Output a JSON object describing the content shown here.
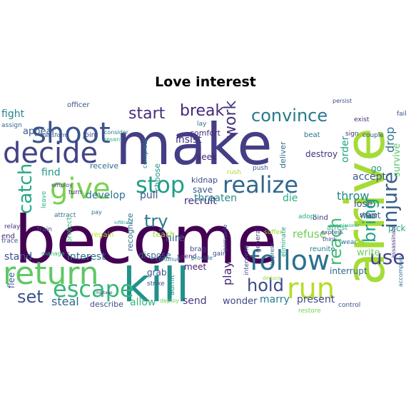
{
  "title": "Love interest",
  "words": [
    {
      "text": "become",
      "color": "#440154"
    },
    {
      "text": "make",
      "color": "#433e85"
    },
    {
      "text": "arrive",
      "color": "#a5db36"
    },
    {
      "text": "kill",
      "color": "#21918c"
    },
    {
      "text": "return",
      "color": "#5ec962"
    },
    {
      "text": "shoot",
      "color": "#3b528b"
    },
    {
      "text": "decide",
      "color": "#414487"
    },
    {
      "text": "give",
      "color": "#7ad151"
    },
    {
      "text": "follow",
      "color": "#2c728e"
    },
    {
      "text": "run",
      "color": "#b5de2b"
    },
    {
      "text": "realize",
      "color": "#31688e"
    },
    {
      "text": "escape",
      "color": "#35b779"
    },
    {
      "text": "stop",
      "color": "#1f9e89"
    },
    {
      "text": "convince",
      "color": "#2a788e"
    },
    {
      "text": "start",
      "color": "#472c7a"
    },
    {
      "text": "break",
      "color": "#482878"
    },
    {
      "text": "hold",
      "color": "#3e4a89"
    },
    {
      "text": "catch",
      "color": "#22a884"
    },
    {
      "text": "injure",
      "color": "#355f8d"
    },
    {
      "text": "bring",
      "color": "#1fa188"
    },
    {
      "text": "work",
      "color": "#46337e"
    },
    {
      "text": "use",
      "color": "#414487"
    },
    {
      "text": "reach",
      "color": "#3fbc73"
    },
    {
      "text": "set",
      "color": "#3b528b"
    },
    {
      "text": "try",
      "color": "#2a788e"
    },
    {
      "text": "develop",
      "color": "#2c728e"
    },
    {
      "text": "fight",
      "color": "#26828e"
    },
    {
      "text": "interest",
      "color": "#2d708e"
    },
    {
      "text": "steal",
      "color": "#306a8e"
    },
    {
      "text": "insist",
      "color": "#463480"
    },
    {
      "text": "hire",
      "color": "#34618d"
    },
    {
      "text": "accept",
      "color": "#39568c"
    },
    {
      "text": "throw",
      "color": "#24868e"
    },
    {
      "text": "refuse",
      "color": "#6ccd5a"
    },
    {
      "text": "marry",
      "color": "#287c8e"
    },
    {
      "text": "present",
      "color": "#3e4989"
    },
    {
      "text": "wonder",
      "color": "#3f4889"
    },
    {
      "text": "play",
      "color": "#482374"
    },
    {
      "text": "allow",
      "color": "#35b779"
    },
    {
      "text": "stand",
      "color": "#3b528b"
    },
    {
      "text": "recruit",
      "color": "#472a7a"
    },
    {
      "text": "threaten",
      "color": "#23898e"
    },
    {
      "text": "drop",
      "color": "#2d708e"
    },
    {
      "text": "survive",
      "color": "#54c568"
    },
    {
      "text": "appear",
      "color": "#375a8c"
    },
    {
      "text": "find",
      "color": "#1f978b"
    },
    {
      "text": "pull",
      "color": "#3a548c"
    },
    {
      "text": "save",
      "color": "#38588c"
    },
    {
      "text": "die",
      "color": "#29af7f"
    },
    {
      "text": "order",
      "color": "#20a486"
    },
    {
      "text": "lose",
      "color": "#3b528b"
    },
    {
      "text": "pick",
      "color": "#25ab82"
    },
    {
      "text": "send",
      "color": "#443983"
    },
    {
      "text": "write",
      "color": "#6ece58"
    },
    {
      "text": "interrupt",
      "color": "#31668e"
    },
    {
      "text": "destroy",
      "color": "#46327e"
    },
    {
      "text": "kidnap",
      "color": "#3f4788"
    },
    {
      "text": "go",
      "color": "#1f9a8a"
    },
    {
      "text": "want",
      "color": "#2c738e"
    },
    {
      "text": "receive",
      "color": "#306a8e"
    },
    {
      "text": "dispose",
      "color": "#2e6e8e"
    },
    {
      "text": "grab",
      "color": "#3b528b"
    },
    {
      "text": "meet",
      "color": "#481f70"
    },
    {
      "text": "teach",
      "color": "#a5db36"
    },
    {
      "text": "recognize",
      "color": "#2d708e"
    },
    {
      "text": "choose",
      "color": "#1f968b"
    },
    {
      "text": "deliver",
      "color": "#2e6d8e"
    },
    {
      "text": "seek",
      "color": "#482475"
    },
    {
      "text": "comfort",
      "color": "#472c7a"
    },
    {
      "text": "brag",
      "color": "#3e4a89"
    },
    {
      "text": "train",
      "color": "#3b528b"
    },
    {
      "text": "end",
      "color": "#481a6c"
    },
    {
      "text": "regain",
      "color": "#bddf26"
    },
    {
      "text": "manage",
      "color": "#30b47b"
    },
    {
      "text": "flee",
      "color": "#355e8d"
    },
    {
      "text": "describe",
      "color": "#3d4e8a"
    },
    {
      "text": "control",
      "color": "#3b528b"
    },
    {
      "text": "arrest",
      "color": "#2fb47c"
    },
    {
      "text": "share",
      "color": "#46327e"
    },
    {
      "text": "reunite",
      "color": "#27808e"
    },
    {
      "text": "wear",
      "color": "#2c738e"
    },
    {
      "text": "bind",
      "color": "#453882"
    },
    {
      "text": "express",
      "color": "#414487"
    },
    {
      "text": "adopt",
      "color": "#26ad81"
    },
    {
      "text": "eliminate",
      "color": "#1f9e89"
    },
    {
      "text": "impress",
      "color": "#3a548c"
    },
    {
      "text": "general",
      "color": "#472d7b"
    },
    {
      "text": "intervene",
      "color": "#3b528b"
    },
    {
      "text": "gain",
      "color": "#3e4989"
    },
    {
      "text": "spend",
      "color": "#482677"
    },
    {
      "text": "admit",
      "color": "#1f958b"
    },
    {
      "text": "strike",
      "color": "#3d4e8a"
    },
    {
      "text": "deploy",
      "color": "#6ccd5a"
    },
    {
      "text": "attract",
      "color": "#2c738e"
    },
    {
      "text": "employ",
      "color": "#433e85"
    },
    {
      "text": "turn",
      "color": "#482878"
    },
    {
      "text": "join",
      "color": "#3e4989"
    },
    {
      "text": "assign",
      "color": "#2e6e8e"
    },
    {
      "text": "transform",
      "color": "#3a538b"
    },
    {
      "text": "officer",
      "color": "#3b528b"
    },
    {
      "text": "consider",
      "color": "#2a788e"
    },
    {
      "text": "resent",
      "color": "#2fb47c"
    },
    {
      "text": "push",
      "color": "#39568c"
    },
    {
      "text": "rush",
      "color": "#a8db34"
    },
    {
      "text": "pay",
      "color": "#2c728e"
    },
    {
      "text": "relay",
      "color": "#46337e"
    },
    {
      "text": "trace",
      "color": "#3b528b"
    },
    {
      "text": "complete",
      "color": "#287d8e"
    },
    {
      "text": "leave",
      "color": "#2fb47c"
    },
    {
      "text": "protect",
      "color": "#3fbc73"
    },
    {
      "text": "persuade",
      "color": "#3f4788"
    },
    {
      "text": "provide",
      "color": "#2c738e"
    },
    {
      "text": "assassinate",
      "color": "#46327e"
    },
    {
      "text": "accompany",
      "color": "#306a8e"
    },
    {
      "text": "suffer",
      "color": "#9dd93b"
    },
    {
      "text": "lay",
      "color": "#2c728e"
    },
    {
      "text": "exist",
      "color": "#472c7a"
    },
    {
      "text": "couple",
      "color": "#3b528b"
    },
    {
      "text": "sign",
      "color": "#46327e"
    },
    {
      "text": "beat",
      "color": "#2e6e8e"
    },
    {
      "text": "think",
      "color": "#414487"
    },
    {
      "text": "commissioner",
      "color": "#20a386"
    },
    {
      "text": "continue",
      "color": "#287c8e"
    },
    {
      "text": "infiltrate",
      "color": "#21918c"
    },
    {
      "text": "persist",
      "color": "#3e4a89"
    },
    {
      "text": "fail",
      "color": "#3b528b"
    },
    {
      "text": "restore",
      "color": "#7ad151"
    },
    {
      "text": "deduce",
      "color": "#95d840"
    },
    {
      "text": "mistake",
      "color": "#3e4989"
    }
  ]
}
